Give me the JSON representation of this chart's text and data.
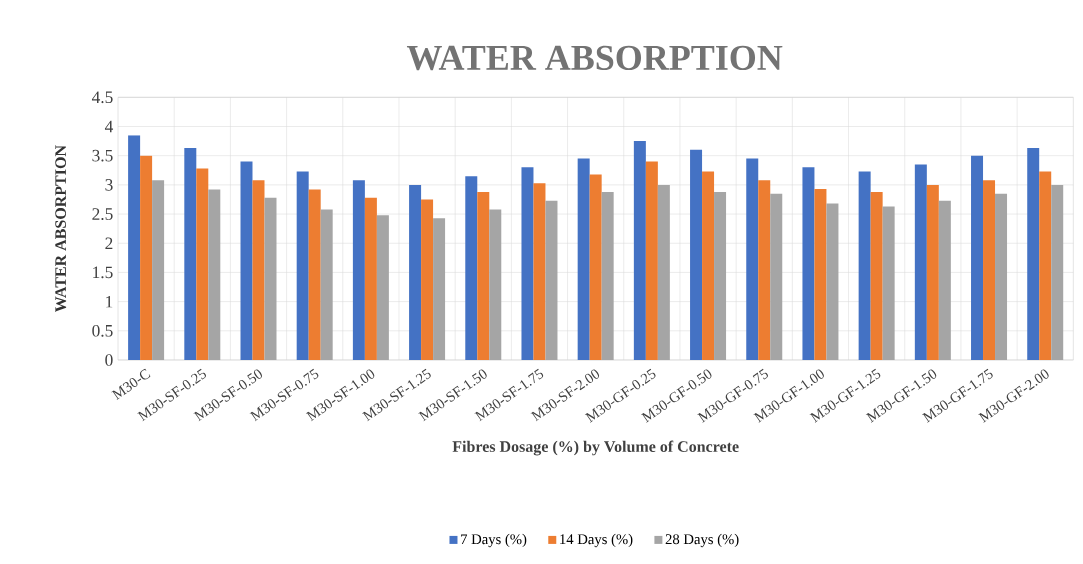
{
  "chart_data": {
    "type": "bar",
    "title": "WATER ABSORPTION",
    "xlabel": "Fibres Dosage (%) by Volume of Concrete",
    "ylabel": "WATER ABSORPTION",
    "categories": [
      "M30-C",
      "M30-SF-0.25",
      "M30-SF-0.50",
      "M30-SF-0.75",
      "M30-SF-1.00",
      "M30-SF-1.25",
      "M30-SF-1.50",
      "M30-SF-1.75",
      "M30-SF-2.00",
      "M30-GF-0.25",
      "M30-GF-0.50",
      "M30-GF-0.75",
      "M30-GF-1.00",
      "M30-GF-1.25",
      "M30-GF-1.50",
      "M30-GF-1.75",
      "M30-GF-2.00"
    ],
    "series": [
      {
        "name": "7 Days (%)",
        "color": "#4472c4",
        "values": [
          3.85,
          3.63,
          3.4,
          3.23,
          3.08,
          3.0,
          3.15,
          3.3,
          3.45,
          3.75,
          3.6,
          3.45,
          3.3,
          3.23,
          3.35,
          3.5,
          3.63
        ]
      },
      {
        "name": "14 Days (%)",
        "color": "#ed7d31",
        "values": [
          3.5,
          3.28,
          3.08,
          2.92,
          2.78,
          2.75,
          2.88,
          3.03,
          3.18,
          3.4,
          3.23,
          3.08,
          2.93,
          2.88,
          3.0,
          3.08,
          3.23
        ]
      },
      {
        "name": "28 Days (%)",
        "color": "#a5a5a5",
        "values": [
          3.08,
          2.92,
          2.78,
          2.58,
          2.48,
          2.43,
          2.58,
          2.73,
          2.88,
          3.0,
          2.88,
          2.85,
          2.68,
          2.63,
          2.73,
          2.85,
          3.0
        ]
      }
    ],
    "ylim": [
      0,
      4.5
    ],
    "yticks": [
      0,
      0.5,
      1,
      1.5,
      2,
      2.5,
      3,
      3.5,
      4,
      4.5
    ],
    "grid": true,
    "legend": "bottom"
  }
}
